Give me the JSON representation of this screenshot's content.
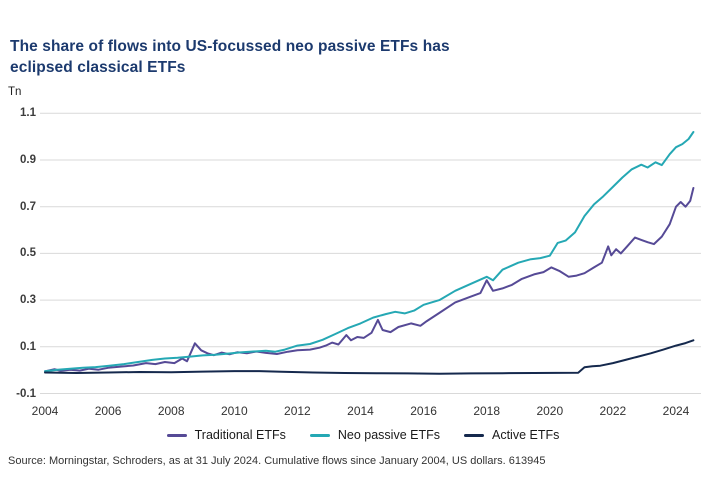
{
  "header": {
    "title_line1": "The share of flows into US-focussed neo passive ETFs has",
    "title_line2": "eclipsed classical ETFs",
    "title_color": "#1c3a6e"
  },
  "footer": {
    "source": "Source: Morningstar, Schroders, as at 31 July 2024. Cumulative flows since January 2004, US dollars. 613945"
  },
  "colors": {
    "grid": "#d9d9d9",
    "tick_text": "#3c3c3c",
    "traditional": "#564a96",
    "neo_passive": "#25a8b4",
    "active": "#15294d"
  },
  "chart_data": {
    "type": "line",
    "title": "The share of flows into US-focussed neo passive ETFs has eclipsed classical ETFs",
    "unit_label": "Tn",
    "xlabel": "",
    "ylabel": "Tn",
    "x_ticks": [
      2004,
      2006,
      2008,
      2010,
      2012,
      2014,
      2016,
      2018,
      2020,
      2022,
      2024
    ],
    "y_ticks": [
      1.1,
      0.9,
      0.7,
      0.5,
      0.3,
      0.1,
      -0.1
    ],
    "x_range": [
      2004,
      2024.6
    ],
    "y_range": [
      -0.1,
      1.1
    ],
    "grid": "horizontal",
    "legend_position": "bottom",
    "series": [
      {
        "name": "Traditional ETFs",
        "color": "#564a96",
        "points": [
          [
            2004.0,
            -0.005
          ],
          [
            2004.3,
            0.004
          ],
          [
            2004.5,
            -0.003
          ],
          [
            2004.8,
            0.002
          ],
          [
            2005.1,
            -0.002
          ],
          [
            2005.4,
            0.006
          ],
          [
            2005.7,
            0.002
          ],
          [
            2006.0,
            0.01
          ],
          [
            2006.4,
            0.015
          ],
          [
            2006.8,
            0.02
          ],
          [
            2007.2,
            0.03
          ],
          [
            2007.5,
            0.026
          ],
          [
            2007.8,
            0.035
          ],
          [
            2008.1,
            0.03
          ],
          [
            2008.35,
            0.05
          ],
          [
            2008.5,
            0.038
          ],
          [
            2008.75,
            0.115
          ],
          [
            2008.95,
            0.085
          ],
          [
            2009.15,
            0.072
          ],
          [
            2009.35,
            0.064
          ],
          [
            2009.6,
            0.075
          ],
          [
            2009.85,
            0.068
          ],
          [
            2010.1,
            0.077
          ],
          [
            2010.4,
            0.072
          ],
          [
            2010.7,
            0.08
          ],
          [
            2011.0,
            0.074
          ],
          [
            2011.35,
            0.069
          ],
          [
            2011.7,
            0.079
          ],
          [
            2012.0,
            0.085
          ],
          [
            2012.4,
            0.088
          ],
          [
            2012.7,
            0.096
          ],
          [
            2012.9,
            0.105
          ],
          [
            2013.1,
            0.118
          ],
          [
            2013.3,
            0.11
          ],
          [
            2013.55,
            0.15
          ],
          [
            2013.7,
            0.128
          ],
          [
            2013.9,
            0.142
          ],
          [
            2014.1,
            0.138
          ],
          [
            2014.35,
            0.16
          ],
          [
            2014.55,
            0.215
          ],
          [
            2014.7,
            0.172
          ],
          [
            2014.95,
            0.163
          ],
          [
            2015.2,
            0.185
          ],
          [
            2015.6,
            0.2
          ],
          [
            2015.9,
            0.19
          ],
          [
            2016.1,
            0.21
          ],
          [
            2016.5,
            0.245
          ],
          [
            2017.0,
            0.29
          ],
          [
            2017.5,
            0.315
          ],
          [
            2017.8,
            0.33
          ],
          [
            2018.0,
            0.385
          ],
          [
            2018.2,
            0.34
          ],
          [
            2018.5,
            0.35
          ],
          [
            2018.8,
            0.365
          ],
          [
            2019.1,
            0.39
          ],
          [
            2019.5,
            0.41
          ],
          [
            2019.8,
            0.42
          ],
          [
            2020.05,
            0.44
          ],
          [
            2020.3,
            0.425
          ],
          [
            2020.6,
            0.4
          ],
          [
            2020.85,
            0.405
          ],
          [
            2021.1,
            0.415
          ],
          [
            2021.4,
            0.44
          ],
          [
            2021.65,
            0.46
          ],
          [
            2021.85,
            0.53
          ],
          [
            2021.95,
            0.492
          ],
          [
            2022.1,
            0.518
          ],
          [
            2022.25,
            0.5
          ],
          [
            2022.45,
            0.53
          ],
          [
            2022.7,
            0.568
          ],
          [
            2022.9,
            0.558
          ],
          [
            2023.1,
            0.548
          ],
          [
            2023.3,
            0.54
          ],
          [
            2023.55,
            0.572
          ],
          [
            2023.8,
            0.625
          ],
          [
            2024.0,
            0.7
          ],
          [
            2024.15,
            0.72
          ],
          [
            2024.3,
            0.7
          ],
          [
            2024.45,
            0.725
          ],
          [
            2024.55,
            0.78
          ]
        ]
      },
      {
        "name": "Neo passive ETFs",
        "color": "#25a8b4",
        "points": [
          [
            2004.0,
            -0.005
          ],
          [
            2004.4,
            0.002
          ],
          [
            2004.8,
            0.006
          ],
          [
            2005.2,
            0.01
          ],
          [
            2005.6,
            0.013
          ],
          [
            2006.0,
            0.018
          ],
          [
            2006.5,
            0.026
          ],
          [
            2007.0,
            0.036
          ],
          [
            2007.4,
            0.044
          ],
          [
            2007.8,
            0.05
          ],
          [
            2008.2,
            0.053
          ],
          [
            2008.6,
            0.058
          ],
          [
            2009.0,
            0.063
          ],
          [
            2009.4,
            0.066
          ],
          [
            2009.8,
            0.071
          ],
          [
            2010.2,
            0.076
          ],
          [
            2010.6,
            0.08
          ],
          [
            2011.0,
            0.083
          ],
          [
            2011.3,
            0.079
          ],
          [
            2011.6,
            0.088
          ],
          [
            2012.0,
            0.105
          ],
          [
            2012.4,
            0.112
          ],
          [
            2012.8,
            0.13
          ],
          [
            2013.2,
            0.155
          ],
          [
            2013.6,
            0.18
          ],
          [
            2014.0,
            0.2
          ],
          [
            2014.4,
            0.225
          ],
          [
            2014.8,
            0.24
          ],
          [
            2015.1,
            0.25
          ],
          [
            2015.4,
            0.243
          ],
          [
            2015.7,
            0.255
          ],
          [
            2016.0,
            0.28
          ],
          [
            2016.5,
            0.3
          ],
          [
            2017.0,
            0.34
          ],
          [
            2017.5,
            0.37
          ],
          [
            2018.0,
            0.4
          ],
          [
            2018.2,
            0.385
          ],
          [
            2018.5,
            0.43
          ],
          [
            2019.0,
            0.46
          ],
          [
            2019.4,
            0.475
          ],
          [
            2019.7,
            0.48
          ],
          [
            2020.0,
            0.49
          ],
          [
            2020.25,
            0.545
          ],
          [
            2020.5,
            0.555
          ],
          [
            2020.8,
            0.59
          ],
          [
            2021.1,
            0.66
          ],
          [
            2021.4,
            0.71
          ],
          [
            2021.7,
            0.745
          ],
          [
            2022.0,
            0.785
          ],
          [
            2022.3,
            0.825
          ],
          [
            2022.6,
            0.86
          ],
          [
            2022.9,
            0.88
          ],
          [
            2023.1,
            0.868
          ],
          [
            2023.35,
            0.89
          ],
          [
            2023.55,
            0.878
          ],
          [
            2023.8,
            0.925
          ],
          [
            2024.0,
            0.955
          ],
          [
            2024.2,
            0.968
          ],
          [
            2024.4,
            0.99
          ],
          [
            2024.55,
            1.02
          ]
        ]
      },
      {
        "name": "Active ETFs",
        "color": "#15294d",
        "points": [
          [
            2004.0,
            -0.01
          ],
          [
            2005.0,
            -0.012
          ],
          [
            2006.0,
            -0.01
          ],
          [
            2007.0,
            -0.008
          ],
          [
            2008.0,
            -0.009
          ],
          [
            2009.0,
            -0.006
          ],
          [
            2010.0,
            -0.004
          ],
          [
            2010.8,
            -0.004
          ],
          [
            2011.5,
            -0.007
          ],
          [
            2012.5,
            -0.01
          ],
          [
            2013.5,
            -0.012
          ],
          [
            2014.5,
            -0.013
          ],
          [
            2015.5,
            -0.014
          ],
          [
            2016.5,
            -0.015
          ],
          [
            2017.5,
            -0.014
          ],
          [
            2018.5,
            -0.013
          ],
          [
            2019.5,
            -0.012
          ],
          [
            2020.9,
            -0.011
          ],
          [
            2021.1,
            0.012
          ],
          [
            2021.35,
            0.017
          ],
          [
            2021.6,
            0.019
          ],
          [
            2022.0,
            0.03
          ],
          [
            2022.4,
            0.044
          ],
          [
            2022.8,
            0.058
          ],
          [
            2023.2,
            0.072
          ],
          [
            2023.6,
            0.088
          ],
          [
            2024.0,
            0.105
          ],
          [
            2024.3,
            0.116
          ],
          [
            2024.55,
            0.128
          ]
        ]
      }
    ]
  }
}
